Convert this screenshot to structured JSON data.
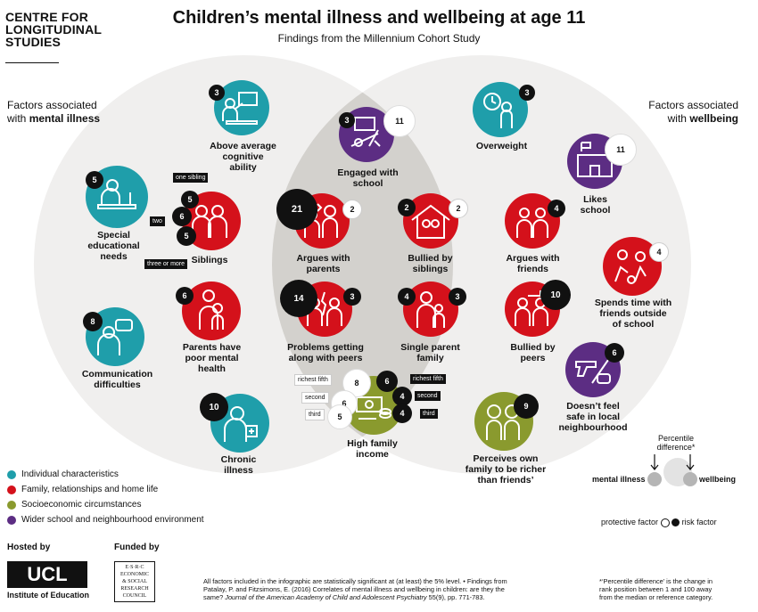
{
  "brand": {
    "lines": [
      "CENTRE FOR",
      "LONGITUDINAL",
      "STUDIES"
    ]
  },
  "title": "Children’s mental illness and wellbeing at age 11",
  "subtitle": "Findings from the Millennium Cohort Study",
  "left_heading": {
    "line1": "Factors associated",
    "line2_prefix": "with ",
    "line2_bold": "mental illness"
  },
  "right_heading": {
    "line1": "Factors associated",
    "line2_prefix": "with ",
    "line2_bold": "wellbeing"
  },
  "colors": {
    "individual": "#1f9eaa",
    "family": "#d4111b",
    "socioeconomic": "#8a9a2e",
    "school": "#5c2d83",
    "venn_bg": "#f0efee",
    "venn_overlap": "#d3d1cd"
  },
  "factors": {
    "above_average": {
      "label": "Above average cognitive ability",
      "l1": "Above average",
      "l2": "cognitive",
      "l3": "ability",
      "n1": "3",
      "icon": "teacher-icon"
    },
    "engaged": {
      "l1": "Engaged with",
      "l2": "school",
      "n1": "3",
      "n2": "11",
      "icon": "school-supplies-icon"
    },
    "overweight": {
      "l1": "Overweight",
      "n1": "3",
      "icon": "scale-icon"
    },
    "sen": {
      "l1": "Special",
      "l2": "educational",
      "l3": "needs",
      "n1": "5",
      "icon": "desk-icon"
    },
    "siblings": {
      "l1": "Siblings",
      "n_one": "5",
      "n_two": "6",
      "n_three": "5",
      "tag_one": "one sibling",
      "tag_two": "two",
      "tag_three": "three or more",
      "icon": "siblings-icon"
    },
    "argues_parents": {
      "l1": "Argues with",
      "l2": "parents",
      "n1": "21",
      "n2": "2",
      "icon": "argue-icon"
    },
    "bullied_siblings": {
      "l1": "Bullied by",
      "l2": "siblings",
      "n1": "2",
      "n2": "2",
      "icon": "house-icon"
    },
    "argues_friends": {
      "l1": "Argues with",
      "l2": "friends",
      "n1": "4",
      "icon": "argue-friends-icon"
    },
    "likes_school": {
      "l1": "Likes",
      "l2": "school",
      "n1": "11",
      "icon": "school-building-icon"
    },
    "parents_health": {
      "l1": "Parents have",
      "l2": "poor mental",
      "l3": "health",
      "n1": "6",
      "icon": "parent-child-icon"
    },
    "problems_peers": {
      "l1": "Problems getting",
      "l2": "along with peers",
      "n1": "14",
      "n2": "3",
      "icon": "broken-peers-icon"
    },
    "single_parent": {
      "l1": "Single parent",
      "l2": "family",
      "n1": "4",
      "n2": "3",
      "icon": "single-parent-icon"
    },
    "bullied_peers": {
      "l1": "Bullied by",
      "l2": "peers",
      "n1": "10",
      "icon": "bullied-icon"
    },
    "friends_outside": {
      "l1": "Spends time with",
      "l2": "friends outside",
      "l3": "of school",
      "n1": "4",
      "icon": "friends-play-icon"
    },
    "communication": {
      "l1": "Communication",
      "l2": "difficulties",
      "n1": "8",
      "icon": "speech-icon"
    },
    "not_safe": {
      "l1": "Doesn’t feel",
      "l2": "safe in local",
      "l3": "neighbourhood",
      "n1": "6",
      "icon": "gun-knife-icon"
    },
    "income": {
      "l1": "High family",
      "l2": "income",
      "left_richest": "8",
      "left_second": "6",
      "left_third": "5",
      "right_richest": "6",
      "right_second": "4",
      "right_third": "4",
      "tag_richest": "richest fifth",
      "tag_second": "second",
      "tag_third": "third",
      "icon": "money-icon"
    },
    "richer": {
      "l1": "Perceives own",
      "l2": "family to be richer",
      "l3": "than friends’",
      "n1": "9",
      "icon": "pounds-icon"
    },
    "chronic": {
      "l1": "Chronic",
      "l2": "illness",
      "n1": "10",
      "icon": "doctor-icon"
    }
  },
  "legend": [
    {
      "label": "Individual characteristics",
      "color": "#1f9eaa"
    },
    {
      "label": "Family, relationships and home life",
      "color": "#d4111b"
    },
    {
      "label": "Socioeconomic circumstances",
      "color": "#8a9a2e"
    },
    {
      "label": "Wider school and neighbourhood environment",
      "color": "#5c2d83"
    }
  ],
  "key": {
    "percentile_l1": "Percentile",
    "percentile_l2": "difference*",
    "mental": "mental illness",
    "wellbeing": "wellbeing",
    "protective": "protective factor",
    "risk": "risk factor"
  },
  "hosted_by": "Hosted by",
  "funded_by": "Funded by",
  "ucl": {
    "name": "UCL",
    "sub": "Institute of Education"
  },
  "esrc": {
    "lines": [
      "E·S·R·C",
      "ECONOMIC",
      "& SOCIAL",
      "RESEARCH",
      "COUNCIL"
    ]
  },
  "footnote": {
    "line1": "All factors included in the infographic are statistically significant at (at least) the 5% level. • Findings from",
    "line2": "Patalay, P. and Fitzsimons, E. (2016) Correlates of mental illness and wellbeing in children: are they the",
    "line3_prefix": "same? ",
    "line3_italic": "Journal of the American Academy of Child and Adolescent Psychiatry",
    "line3_suffix": " 55(9), pp. 771-783."
  },
  "percentile_note": {
    "l1": "*‘Percentile difference’ is the change in",
    "l2": "rank position between 1 and 100 away",
    "l3": "from the median or reference category."
  }
}
